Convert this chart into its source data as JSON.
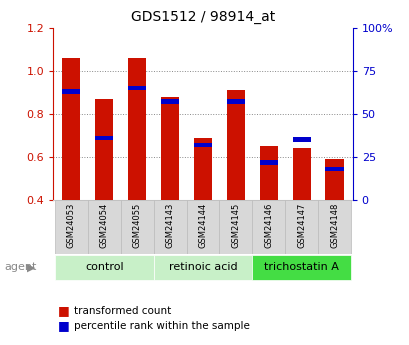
{
  "title": "GDS1512 / 98914_at",
  "samples": [
    "GSM24053",
    "GSM24054",
    "GSM24055",
    "GSM24143",
    "GSM24144",
    "GSM24145",
    "GSM24146",
    "GSM24147",
    "GSM24148"
  ],
  "red_values": [
    1.06,
    0.87,
    1.06,
    0.88,
    0.69,
    0.91,
    0.65,
    0.64,
    0.59
  ],
  "blue_pct": [
    63,
    36,
    65,
    57,
    32,
    57,
    22,
    35,
    18
  ],
  "groups": [
    {
      "label": "control",
      "indices": [
        0,
        1,
        2
      ]
    },
    {
      "label": "retinoic acid",
      "indices": [
        3,
        4,
        5
      ]
    },
    {
      "label": "trichostatin A",
      "indices": [
        6,
        7,
        8
      ]
    }
  ],
  "group_colors": [
    "#c8f0c8",
    "#c8f0c8",
    "#44dd44"
  ],
  "ylim_left": [
    0.4,
    1.2
  ],
  "ylim_right": [
    0,
    100
  ],
  "yticks_left": [
    0.4,
    0.6,
    0.8,
    1.0,
    1.2
  ],
  "yticks_right": [
    0,
    25,
    50,
    75,
    100
  ],
  "ytick_right_labels": [
    "0",
    "25",
    "50",
    "75",
    "100%"
  ],
  "bar_width": 0.55,
  "red_color": "#cc1100",
  "blue_color": "#0000cc",
  "grid_color": "#888888",
  "sample_box_color": "#d0d0d0",
  "agent_color": "#888888"
}
